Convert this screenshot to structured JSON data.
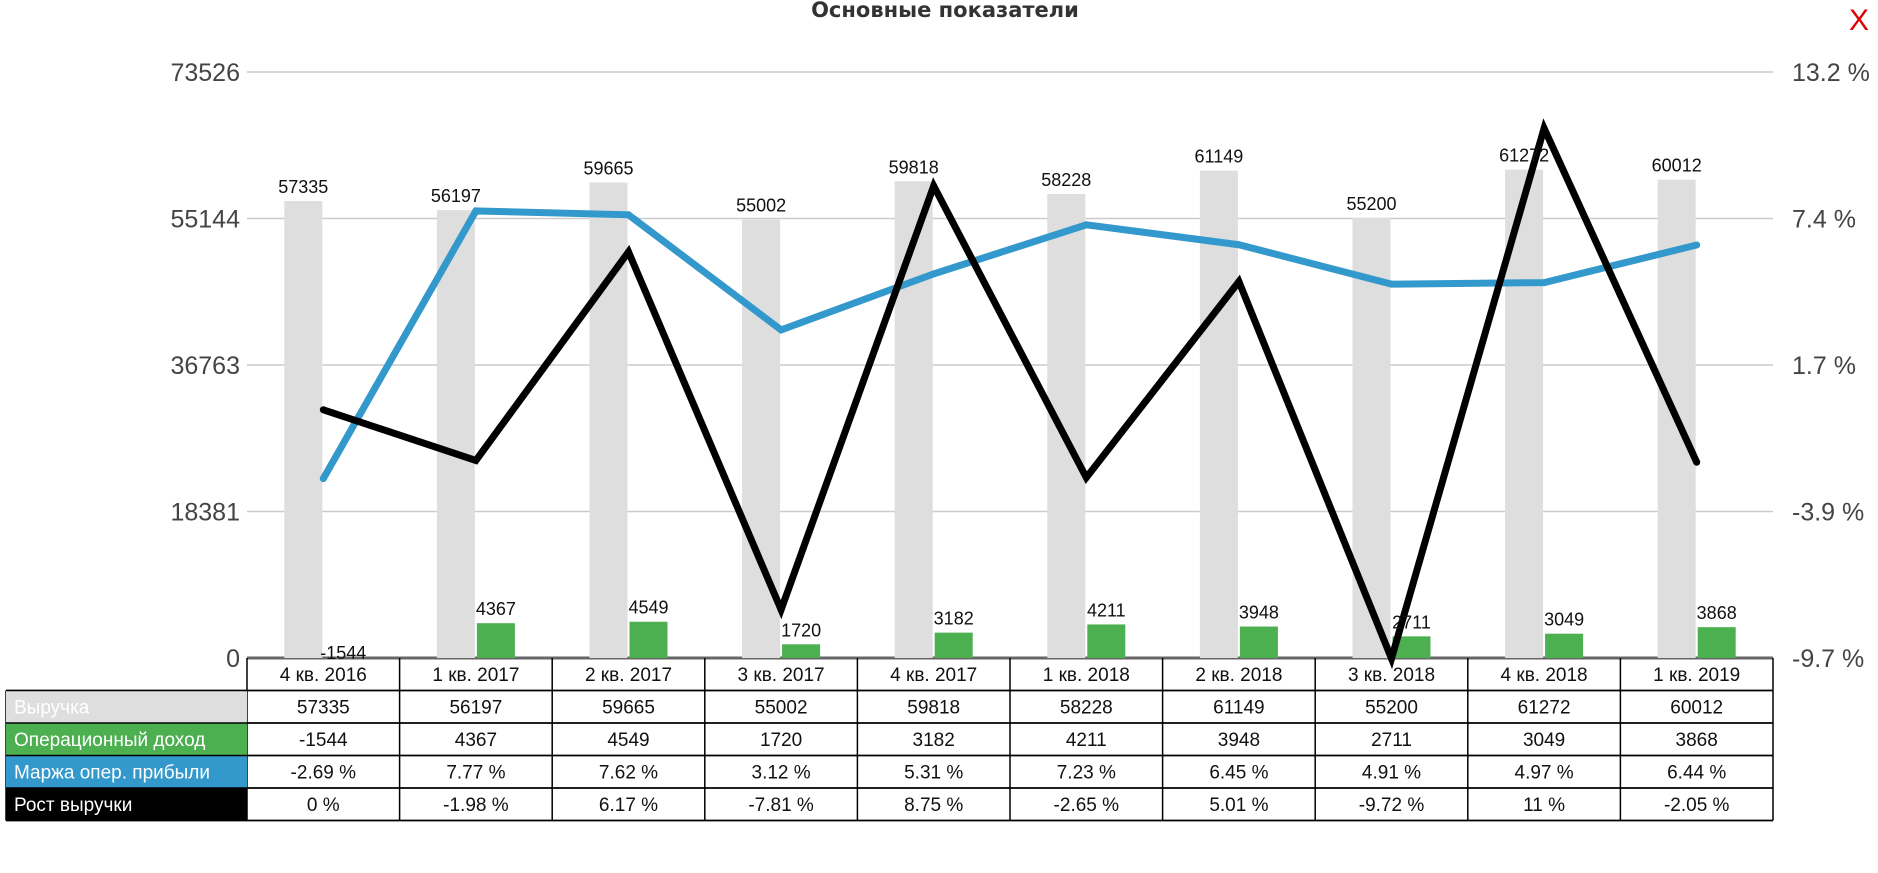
{
  "close_label": "X",
  "colors": {
    "revenue": "#dedede",
    "op_income": "#4caf50",
    "margin": "#3399cc",
    "growth": "#000000",
    "close": "#e00000"
  },
  "chart_data": {
    "type": "bar",
    "title": "Основные показатели",
    "categories": [
      "4 кв. 2016",
      "1 кв. 2017",
      "2 кв. 2017",
      "3 кв. 2017",
      "4 кв. 2017",
      "1 кв. 2018",
      "2 кв. 2018",
      "3 кв. 2018",
      "4 кв. 2018",
      "1 кв. 2019"
    ],
    "left_axis": {
      "min": 0,
      "max": 73526,
      "ticks": [
        "0",
        "18381",
        "36763",
        "55144",
        "73526"
      ]
    },
    "right_axis": {
      "min": -9.7,
      "max": 13.2,
      "ticks": [
        "-9.7 %",
        "-3.9 %",
        "1.7 %",
        "7.4 %",
        "13.2 %"
      ]
    },
    "grid": true,
    "legend": "table-bottom",
    "series": [
      {
        "name": "Выручка",
        "type": "bar",
        "axis": "left",
        "color": "#dedede",
        "values": [
          57335,
          56197,
          59665,
          55002,
          59818,
          58228,
          61149,
          55200,
          61272,
          60012
        ],
        "labels": [
          "57335",
          "56197",
          "59665",
          "55002",
          "59818",
          "58228",
          "61149",
          "55200",
          "61272",
          "60012"
        ]
      },
      {
        "name": "Операционный доход",
        "type": "bar",
        "axis": "left",
        "color": "#4caf50",
        "values": [
          -1544,
          4367,
          4549,
          1720,
          3182,
          4211,
          3948,
          2711,
          3049,
          3868
        ],
        "labels": [
          "-1544",
          "4367",
          "4549",
          "1720",
          "3182",
          "4211",
          "3948",
          "2711",
          "3049",
          "3868"
        ]
      },
      {
        "name": "Маржа опер. прибыли",
        "type": "line",
        "axis": "right",
        "color": "#3399cc",
        "values": [
          -2.69,
          7.77,
          7.62,
          3.12,
          5.31,
          7.23,
          6.45,
          4.91,
          4.97,
          6.44
        ],
        "labels": [
          "-2.69 %",
          "7.77 %",
          "7.62 %",
          "3.12 %",
          "5.31 %",
          "7.23 %",
          "6.45 %",
          "4.91 %",
          "4.97 %",
          "6.44 %"
        ]
      },
      {
        "name": "Рост выручки",
        "type": "line",
        "axis": "right",
        "color": "#000000",
        "values": [
          0,
          -1.98,
          6.17,
          -7.81,
          8.75,
          -2.65,
          5.01,
          -9.72,
          11,
          -2.05
        ],
        "labels": [
          "0 %",
          "-1.98 %",
          "6.17 %",
          "-7.81 %",
          "8.75 %",
          "-2.65 %",
          "5.01 %",
          "-9.72 %",
          "11 %",
          "-2.05 %"
        ]
      }
    ]
  }
}
